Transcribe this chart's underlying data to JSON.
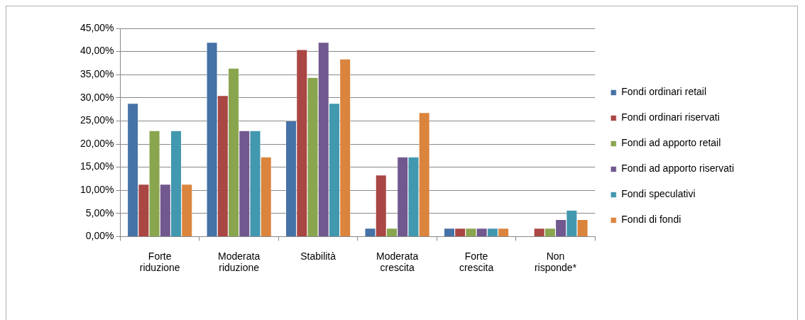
{
  "chart_data": {
    "type": "bar",
    "categories": [
      "Forte riduzione",
      "Moderata riduzione",
      "Stabilità",
      "Moderata crescita",
      "Forte crescita",
      "Non risponde*"
    ],
    "series": [
      {
        "name": "Fondi ordinari retail",
        "color": "#4572a7",
        "values": [
          28.8,
          42.0,
          25.0,
          1.8,
          1.8,
          0
        ]
      },
      {
        "name": "Fondi ordinari riservati",
        "color": "#aa4643",
        "values": [
          11.3,
          30.5,
          40.4,
          13.3,
          1.8,
          1.8
        ]
      },
      {
        "name": "Fondi ad apporto retail",
        "color": "#89a54e",
        "values": [
          22.9,
          36.4,
          34.4,
          1.8,
          1.8,
          1.8
        ]
      },
      {
        "name": "Fondi ad apporto riservati",
        "color": "#71588f",
        "values": [
          11.3,
          22.9,
          42.0,
          17.2,
          1.8,
          3.7
        ]
      },
      {
        "name": "Fondi speculativi",
        "color": "#4198af",
        "values": [
          22.9,
          22.9,
          28.8,
          17.2,
          1.8,
          5.7
        ]
      },
      {
        "name": "Fondi di fondi",
        "color": "#db843d",
        "values": [
          11.3,
          17.2,
          38.4,
          26.8,
          1.8,
          3.7
        ]
      }
    ],
    "ylim": [
      0,
      45
    ],
    "yticks": [
      {
        "value": 0,
        "label": "0,00%"
      },
      {
        "value": 5,
        "label": "5,00%"
      },
      {
        "value": 10,
        "label": "10,00%"
      },
      {
        "value": 15,
        "label": "15,00%"
      },
      {
        "value": 20,
        "label": "20,00%"
      },
      {
        "value": 25,
        "label": "25,00%"
      },
      {
        "value": 30,
        "label": "30,00%"
      },
      {
        "value": 35,
        "label": "35,00%"
      },
      {
        "value": 40,
        "label": "40,00%"
      },
      {
        "value": 45,
        "label": "45,00%"
      }
    ],
    "grid": "y",
    "legend": "right"
  }
}
